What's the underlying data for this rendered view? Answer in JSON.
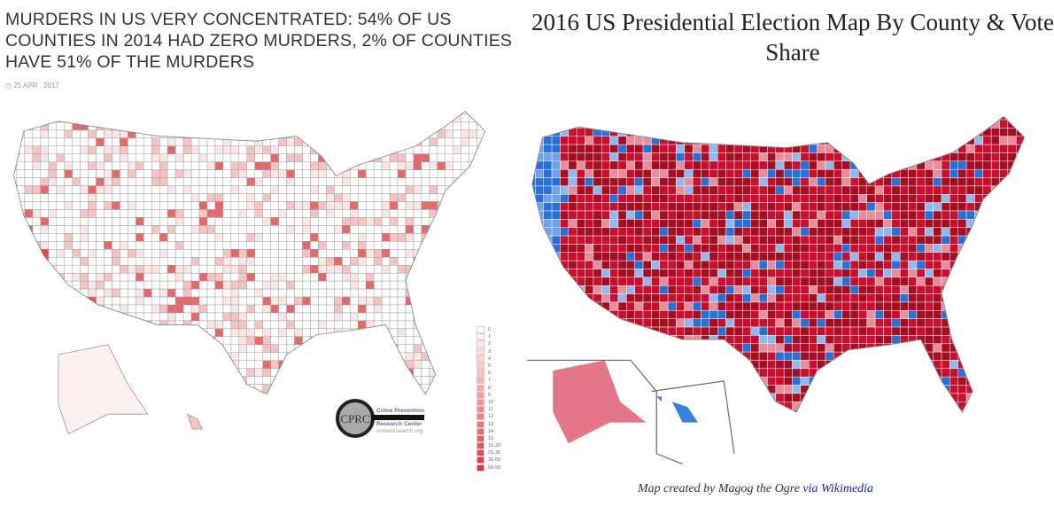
{
  "left_panel": {
    "title": "MURDERS IN US VERY CONCENTRATED: 54% OF US COUNTIES IN 2014 HAD ZERO MURDERS, 2% OF COUNTIES HAVE 51% OF THE MURDERS",
    "date_icon": "clock-icon",
    "date": "25 APR , 2017",
    "legend": [
      "0",
      "1",
      "2",
      "3",
      "4",
      "5",
      "6",
      "7",
      "8",
      "9",
      "10",
      "11",
      "12",
      "13",
      "14",
      "15",
      "16-20",
      "21-30",
      "31-50",
      "50-99"
    ],
    "logo": {
      "initials": "CPRC",
      "line1": "Crime Prevention",
      "line2": "Research Center",
      "url": "crimeresearch.org"
    },
    "colors": {
      "low": "#ffffff",
      "high": "#e0313b"
    }
  },
  "right_panel": {
    "title": "2016 US Presidential Election Map By County & Vote Share",
    "caption": "Map created by Magog the Ogre",
    "caption_link": "via Wikimedia",
    "colors": {
      "republican": "#c8102e",
      "democrat": "#2a6fd6",
      "link": "#1a1aa6"
    }
  }
}
